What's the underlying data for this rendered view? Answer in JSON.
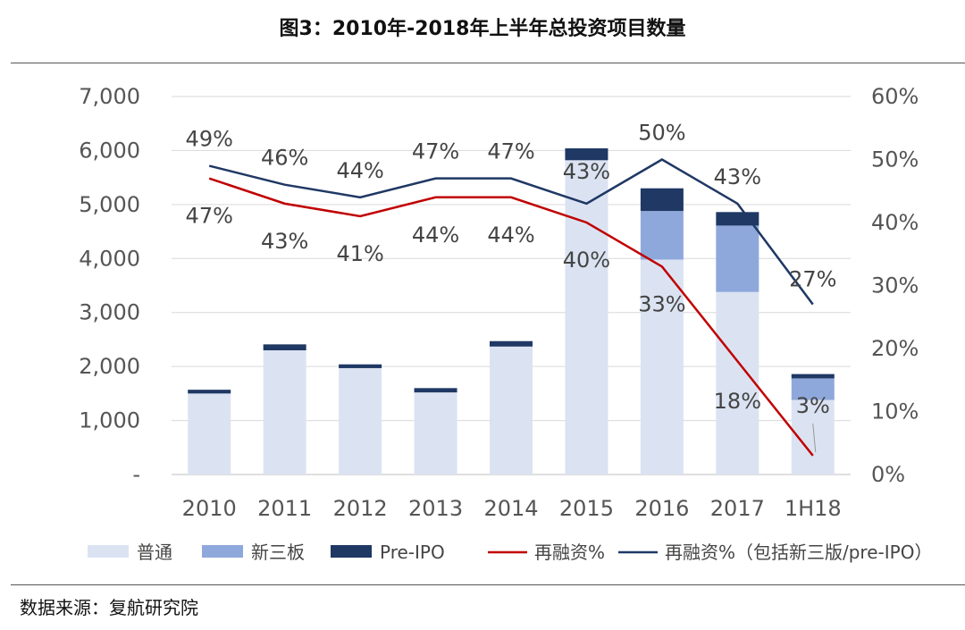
{
  "chart_data": {
    "type": "bar",
    "title": "图3：2010年-2018年上半年总投资项目数量",
    "source": "数据来源：复航研究院",
    "categories": [
      "2010",
      "2011",
      "2012",
      "2013",
      "2014",
      "2015",
      "2016",
      "2017",
      "1H18"
    ],
    "ylim": [
      0,
      7000
    ],
    "y2lim": [
      0,
      60
    ],
    "y_ticks": [
      "-",
      "1,000",
      "2,000",
      "3,000",
      "4,000",
      "5,000",
      "6,000",
      "7,000"
    ],
    "y2_ticks": [
      "0%",
      "10%",
      "20%",
      "30%",
      "40%",
      "50%",
      "60%"
    ],
    "series": [
      {
        "name": "普通",
        "stack": true,
        "color": "#dbe3f2",
        "values": [
          1500,
          2300,
          1970,
          1520,
          2370,
          5820,
          3980,
          3380,
          1380
        ]
      },
      {
        "name": "新三板",
        "stack": true,
        "color": "#8fa8db",
        "values": [
          0,
          0,
          0,
          0,
          0,
          0,
          900,
          1230,
          400
        ]
      },
      {
        "name": "Pre-IPO",
        "stack": true,
        "color": "#1f3864",
        "values": [
          70,
          110,
          70,
          80,
          100,
          220,
          420,
          250,
          80
        ]
      },
      {
        "name": "再融资%",
        "type": "line",
        "axis": "right",
        "color": "#c00000",
        "values": [
          47,
          43,
          41,
          44,
          44,
          40,
          33,
          18,
          3
        ],
        "labels": [
          "47%",
          "43%",
          "41%",
          "44%",
          "44%",
          "40%",
          "33%",
          "18%",
          "3%"
        ]
      },
      {
        "name": "再融资%（包括新三版/pre-IPO）",
        "type": "line",
        "axis": "right",
        "color": "#1f3864",
        "values": [
          49,
          46,
          44,
          47,
          47,
          43,
          50,
          43,
          27
        ],
        "labels": [
          "49%",
          "46%",
          "44%",
          "47%",
          "47%",
          "43%",
          "50%",
          "43%",
          "27%"
        ]
      }
    ],
    "legend_position": "bottom",
    "grid": true
  }
}
